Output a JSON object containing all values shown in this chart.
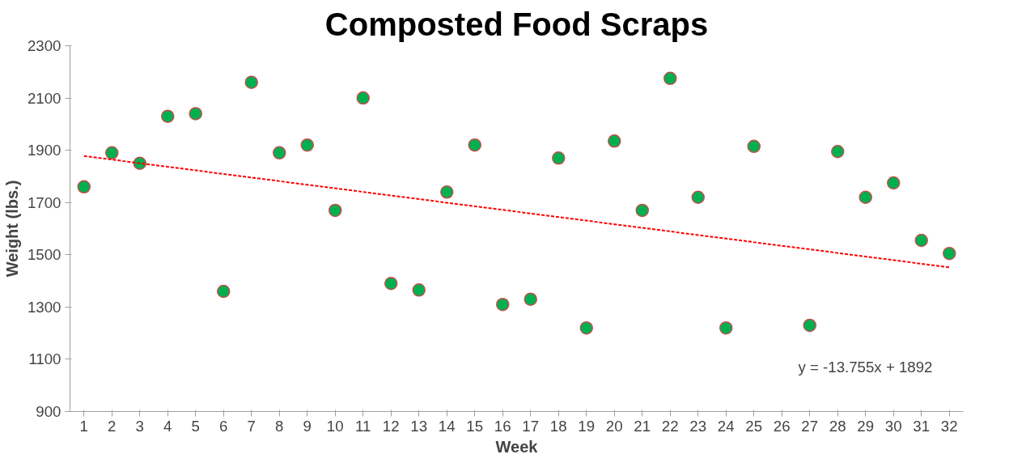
{
  "chart_data": {
    "type": "scatter",
    "title": "Composted Food Scraps",
    "xlabel": "Week",
    "ylabel": "Weight (lbs.)",
    "x": [
      1,
      2,
      3,
      4,
      5,
      6,
      7,
      8,
      9,
      10,
      11,
      12,
      13,
      14,
      15,
      16,
      17,
      18,
      19,
      20,
      21,
      22,
      23,
      24,
      25,
      26,
      27,
      28,
      29,
      30,
      31,
      32
    ],
    "series": [
      {
        "color": "#00b050",
        "marker": "circle",
        "values": [
          1760,
          1890,
          1850,
          2030,
          2040,
          1360,
          2160,
          1890,
          1920,
          1670,
          2100,
          1390,
          1365,
          1740,
          1920,
          1310,
          1330,
          1870,
          1220,
          1935,
          1670,
          2175,
          1720,
          1220,
          1915,
          null,
          1230,
          1895,
          1720,
          1775,
          1555,
          1505
        ]
      },
      {
        "type": "line",
        "color": "#ff0000",
        "line_style": "dashed",
        "x": [
          1,
          32
        ],
        "values": [
          1878,
          1452
        ]
      }
    ],
    "xlim": [
      0.5,
      32.5
    ],
    "xticks": [
      1,
      2,
      3,
      4,
      5,
      6,
      7,
      8,
      9,
      10,
      11,
      12,
      13,
      14,
      15,
      16,
      17,
      18,
      19,
      20,
      21,
      22,
      23,
      24,
      25,
      26,
      27,
      28,
      29,
      30,
      31,
      32
    ],
    "ylim": [
      900,
      2300
    ],
    "yticks": [
      900,
      1100,
      1300,
      1500,
      1700,
      1900,
      2100,
      2300
    ],
    "grid": false,
    "annotations": [
      "y = -13.755x + 1892"
    ]
  }
}
